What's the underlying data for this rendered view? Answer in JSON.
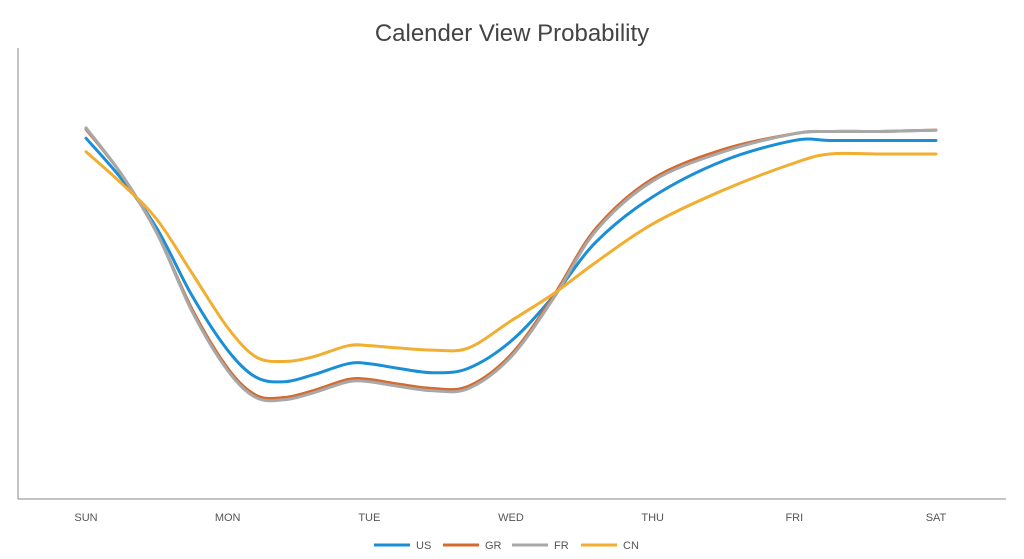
{
  "chart_data": {
    "type": "line",
    "title": "Calender View Probability",
    "xlabel": "",
    "ylabel": "",
    "ylim": [
      0,
      100
    ],
    "grid": false,
    "legend_position": "bottom",
    "x": [
      "SUN",
      "MON",
      "TUE",
      "WED",
      "THU",
      "FRI",
      "SAT"
    ],
    "series": [
      {
        "name": "US",
        "color": "#1a8fd6",
        "values": [
          [
            0.0,
            80
          ],
          [
            0.25,
            71
          ],
          [
            0.5,
            60
          ],
          [
            0.75,
            45
          ],
          [
            1.0,
            33
          ],
          [
            1.2,
            27
          ],
          [
            1.4,
            26
          ],
          [
            1.6,
            27.5
          ],
          [
            1.85,
            30
          ],
          [
            2.0,
            30
          ],
          [
            2.2,
            29
          ],
          [
            2.45,
            28
          ],
          [
            2.7,
            29
          ],
          [
            3.0,
            35
          ],
          [
            3.3,
            45
          ],
          [
            3.6,
            57
          ],
          [
            4.0,
            67
          ],
          [
            4.5,
            75
          ],
          [
            5.0,
            79.5
          ],
          [
            5.25,
            79.5
          ],
          [
            5.6,
            79.5
          ],
          [
            6.0,
            79.5
          ]
        ]
      },
      {
        "name": "GR",
        "color": "#d46a2e",
        "values": [
          [
            0.0,
            82
          ],
          [
            0.25,
            72
          ],
          [
            0.5,
            59
          ],
          [
            0.75,
            42
          ],
          [
            1.0,
            29
          ],
          [
            1.2,
            23
          ],
          [
            1.4,
            22.5
          ],
          [
            1.6,
            24
          ],
          [
            1.85,
            26.5
          ],
          [
            2.0,
            26.5
          ],
          [
            2.2,
            25.5
          ],
          [
            2.45,
            24.5
          ],
          [
            2.7,
            25
          ],
          [
            3.0,
            32
          ],
          [
            3.3,
            45
          ],
          [
            3.6,
            60
          ],
          [
            4.0,
            71
          ],
          [
            4.5,
            77.5
          ],
          [
            5.0,
            81
          ],
          [
            5.25,
            81.5
          ],
          [
            5.6,
            81.5
          ],
          [
            6.0,
            81.8
          ]
        ]
      },
      {
        "name": "FR",
        "color": "#a8a8a8",
        "values": [
          [
            0.0,
            82.3
          ],
          [
            0.25,
            72
          ],
          [
            0.5,
            59
          ],
          [
            0.75,
            41.5
          ],
          [
            1.0,
            28.5
          ],
          [
            1.2,
            22.5
          ],
          [
            1.4,
            22
          ],
          [
            1.6,
            23.5
          ],
          [
            1.85,
            26
          ],
          [
            2.0,
            26
          ],
          [
            2.2,
            25
          ],
          [
            2.45,
            24
          ],
          [
            2.7,
            24.5
          ],
          [
            3.0,
            31.5
          ],
          [
            3.3,
            44.5
          ],
          [
            3.6,
            59.5
          ],
          [
            4.0,
            70.5
          ],
          [
            4.5,
            77
          ],
          [
            5.0,
            81
          ],
          [
            5.25,
            81.5
          ],
          [
            5.6,
            81.5
          ],
          [
            6.0,
            81.8
          ]
        ]
      },
      {
        "name": "CN",
        "color": "#f2ae30",
        "values": [
          [
            0.0,
            77
          ],
          [
            0.25,
            70
          ],
          [
            0.5,
            62
          ],
          [
            0.75,
            50
          ],
          [
            1.0,
            38
          ],
          [
            1.2,
            31.5
          ],
          [
            1.4,
            30.5
          ],
          [
            1.6,
            31.5
          ],
          [
            1.85,
            34
          ],
          [
            2.0,
            34
          ],
          [
            2.2,
            33.5
          ],
          [
            2.45,
            33
          ],
          [
            2.7,
            33.5
          ],
          [
            3.0,
            39.5
          ],
          [
            3.3,
            45.5
          ],
          [
            3.6,
            52.5
          ],
          [
            4.0,
            61
          ],
          [
            4.5,
            68.5
          ],
          [
            5.0,
            74.5
          ],
          [
            5.25,
            76.5
          ],
          [
            5.6,
            76.5
          ],
          [
            6.0,
            76.5
          ]
        ]
      }
    ]
  }
}
